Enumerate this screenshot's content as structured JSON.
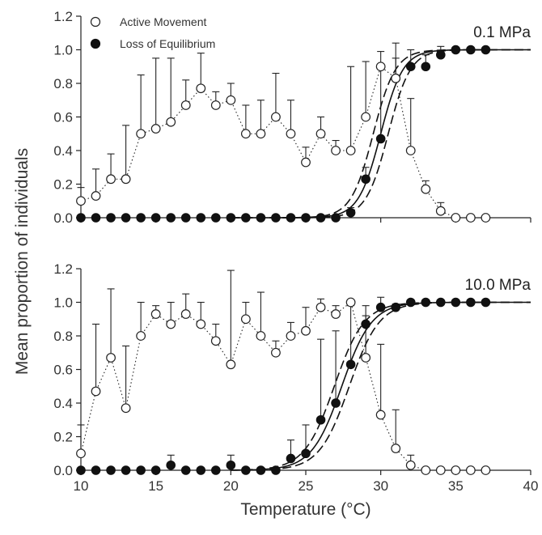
{
  "chart_data": {
    "type": "scatter",
    "ylabel": "Mean proportion of individuals",
    "xlabel": "Temperature (°C)",
    "legend": {
      "placement": "top-left",
      "entries": [
        "Active Movement",
        "Loss of Equilibrium"
      ]
    },
    "xlim": [
      10,
      40
    ],
    "ylim": [
      0,
      1.2
    ],
    "xticks": [
      "10",
      "15",
      "20",
      "25",
      "30",
      "35",
      "40"
    ],
    "yticks": [
      "0.0",
      "0.2",
      "0.4",
      "0.6",
      "0.8",
      "1.0",
      "1.2"
    ],
    "panels": [
      {
        "label": "0.1 MPa",
        "active_movement": {
          "x": [
            10,
            11,
            12,
            13,
            14,
            15,
            16,
            17,
            18,
            19,
            20,
            21,
            22,
            23,
            24,
            25,
            26,
            27,
            28,
            29,
            30,
            31,
            32,
            33,
            34,
            35,
            36,
            37
          ],
          "y": [
            0.1,
            0.13,
            0.23,
            0.23,
            0.5,
            0.53,
            0.57,
            0.67,
            0.77,
            0.67,
            0.7,
            0.5,
            0.5,
            0.6,
            0.5,
            0.33,
            0.5,
            0.4,
            0.4,
            0.6,
            0.9,
            0.83,
            0.4,
            0.17,
            0.04,
            0.0,
            0.0,
            0.0
          ],
          "err_upper": [
            0.18,
            0.29,
            0.38,
            0.55,
            0.85,
            0.95,
            0.95,
            0.82,
            0.98,
            0.75,
            0.8,
            0.67,
            0.7,
            0.86,
            0.7,
            0.42,
            0.6,
            0.46,
            0.9,
            0.93,
            0.99,
            1.04,
            0.71,
            0.22,
            0.09,
            0.0,
            0.0,
            0.0
          ]
        },
        "loss_of_equilibrium": {
          "x": [
            10,
            11,
            12,
            13,
            14,
            15,
            16,
            17,
            18,
            19,
            20,
            21,
            22,
            23,
            24,
            25,
            26,
            27,
            28,
            29,
            30,
            31,
            32,
            33,
            34,
            35,
            36,
            37
          ],
          "y": [
            0,
            0,
            0,
            0,
            0,
            0,
            0,
            0,
            0,
            0,
            0,
            0,
            0,
            0,
            0,
            0,
            0,
            0,
            0.03,
            0.23,
            0.47,
            0.83,
            0.9,
            0.9,
            0.97,
            1.0,
            1.0,
            1.0
          ],
          "err_upper": [
            0,
            0,
            0,
            0,
            0,
            0,
            0,
            0,
            0,
            0,
            0,
            0,
            0,
            0,
            0,
            0,
            0,
            0,
            0.06,
            0.3,
            0.9,
            0.95,
            1.0,
            0.97,
            1.02,
            1.0,
            1.0,
            1.0
          ]
        },
        "fit": {
          "midpoint": 30.0,
          "slope": 1.35,
          "ci_shift": 0.5
        }
      },
      {
        "label": "10.0 MPa",
        "active_movement": {
          "x": [
            10,
            11,
            12,
            13,
            14,
            15,
            16,
            17,
            18,
            19,
            20,
            21,
            22,
            23,
            24,
            25,
            26,
            27,
            28,
            29,
            30,
            31,
            32,
            33,
            34,
            35,
            36,
            37
          ],
          "y": [
            0.1,
            0.47,
            0.67,
            0.37,
            0.8,
            0.93,
            0.87,
            0.93,
            0.87,
            0.77,
            0.63,
            0.9,
            0.8,
            0.7,
            0.8,
            0.83,
            0.97,
            0.93,
            1.0,
            0.67,
            0.33,
            0.13,
            0.03,
            0.0,
            0.0,
            0.0,
            0.0,
            0.0
          ],
          "err_upper": [
            0.27,
            0.87,
            1.08,
            0.74,
            1.0,
            0.98,
            1.0,
            1.05,
            1.0,
            0.87,
            1.19,
            1.0,
            1.06,
            0.77,
            0.88,
            0.97,
            1.02,
            0.98,
            1.0,
            0.92,
            0.75,
            0.36,
            0.09,
            0.0,
            0.0,
            0.0,
            0.0,
            0.0
          ]
        },
        "loss_of_equilibrium": {
          "x": [
            10,
            11,
            12,
            13,
            14,
            15,
            16,
            17,
            18,
            19,
            20,
            21,
            22,
            23,
            24,
            25,
            26,
            27,
            28,
            29,
            30,
            31,
            32,
            33,
            34,
            35,
            36,
            37
          ],
          "y": [
            0,
            0,
            0,
            0,
            0,
            0,
            0.03,
            0,
            0,
            0,
            0.03,
            0,
            0,
            0,
            0.07,
            0.1,
            0.3,
            0.4,
            0.63,
            0.87,
            0.97,
            0.97,
            1.0,
            1.0,
            1.0,
            1.0,
            1.0,
            1.0
          ],
          "err_upper": [
            0,
            0,
            0,
            0,
            0,
            0,
            0.09,
            0,
            0,
            0,
            0.09,
            0,
            0,
            0,
            0.18,
            0.27,
            0.78,
            0.83,
            0.98,
            0.98,
            1.03,
            0.99,
            1.0,
            1.0,
            1.0,
            1.0,
            1.0,
            1.0
          ]
        },
        "fit": {
          "midpoint": 27.4,
          "slope": 1.0,
          "ci_shift": 0.5
        }
      }
    ]
  }
}
